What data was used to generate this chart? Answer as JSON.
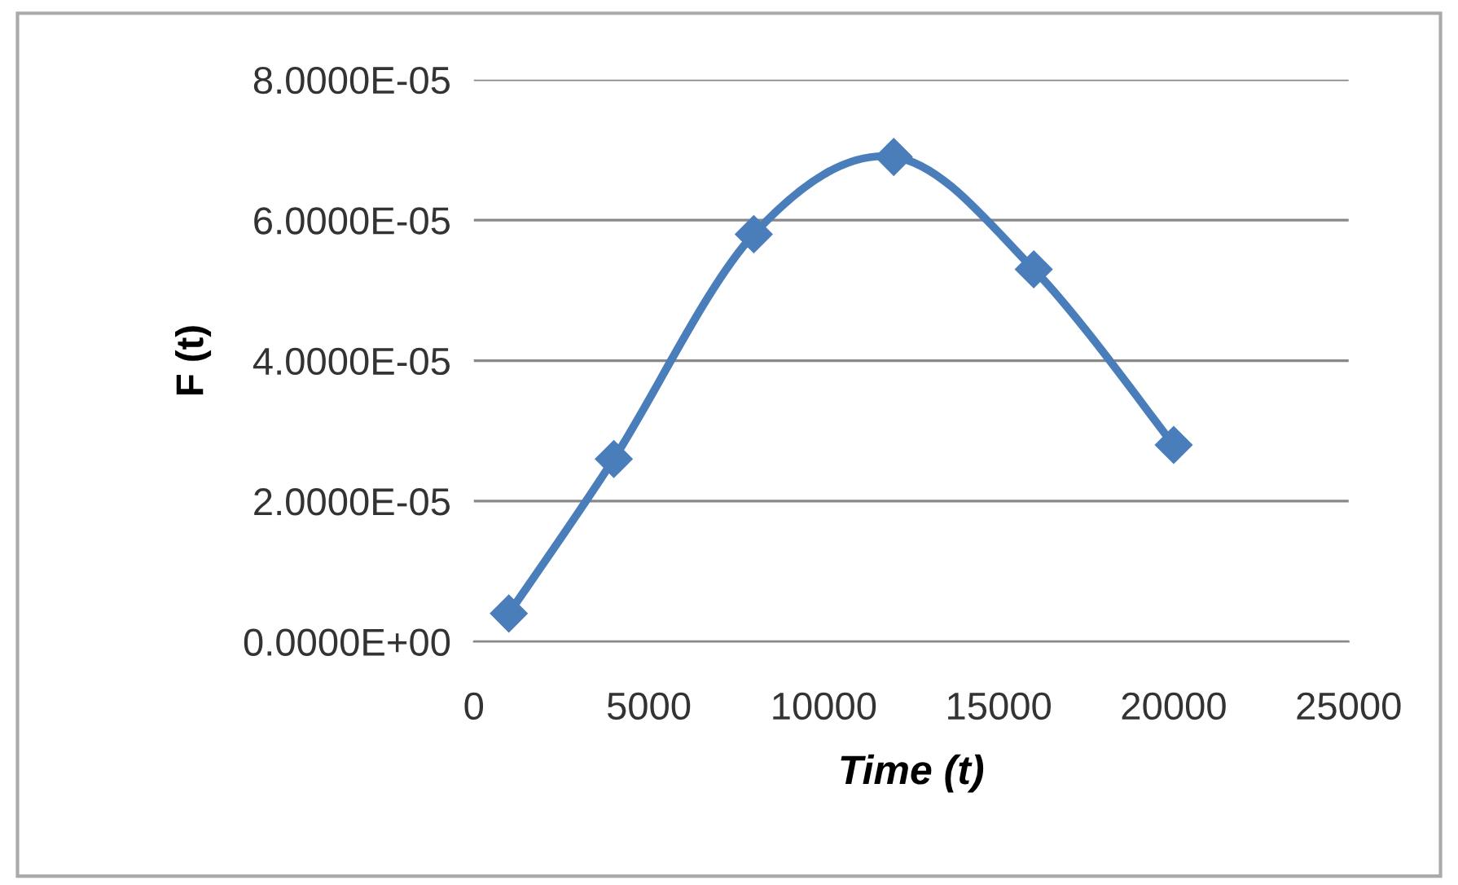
{
  "chart_data": {
    "type": "line",
    "xlabel": "Time (t)",
    "ylabel": "F (t)",
    "x": [
      1000,
      4000,
      8000,
      12000,
      16000,
      20000
    ],
    "series": [
      {
        "color": "#4a7ebb",
        "values": [
          4e-06,
          2.6e-05,
          5.8e-05,
          6.9e-05,
          5.3e-05,
          2.8e-05
        ]
      }
    ],
    "xlim": [
      0,
      25000
    ],
    "xticks": [
      0,
      5000,
      10000,
      15000,
      20000,
      25000
    ],
    "ylim": [
      0,
      8e-05
    ],
    "yticks": [
      {
        "value": 0,
        "label": "0.0000E+00"
      },
      {
        "value": 2e-05,
        "label": "2.0000E-05"
      },
      {
        "value": 4e-05,
        "label": "4.0000E-05"
      },
      {
        "value": 6e-05,
        "label": "6.0000E-05"
      },
      {
        "value": 8e-05,
        "label": "8.0000E-05"
      }
    ],
    "grid": "y",
    "marker": "diamond",
    "line_style": "solid",
    "legend": false
  }
}
